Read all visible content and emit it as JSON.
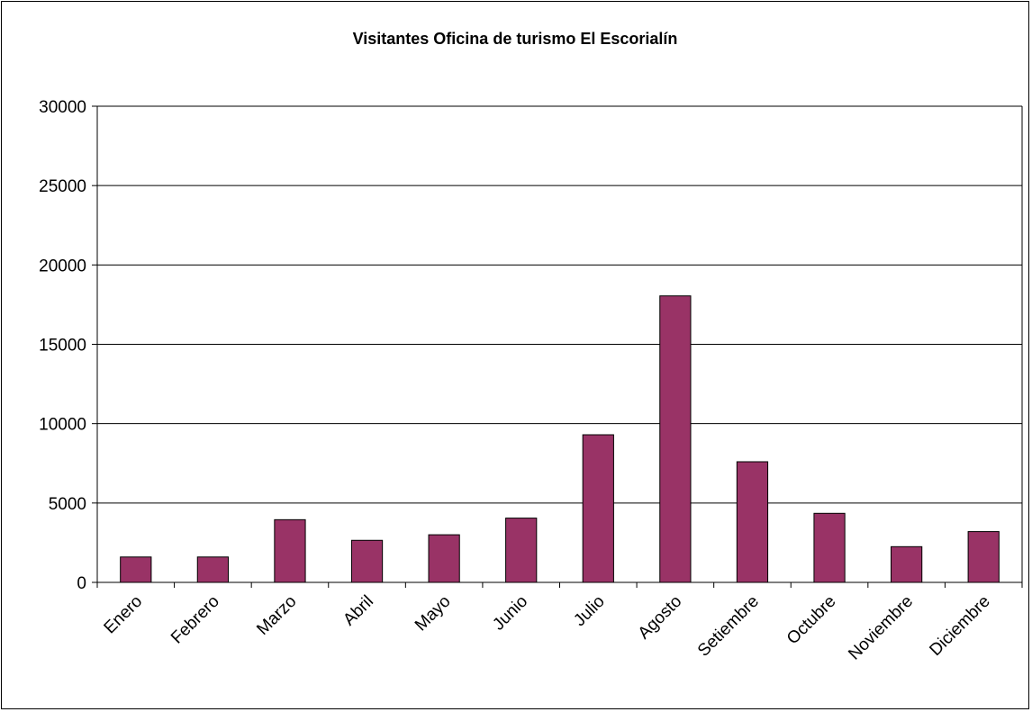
{
  "chart_data": {
    "type": "bar",
    "title": "Visitantes Oficina de turismo El Escorialín",
    "xlabel": "",
    "ylabel": "",
    "categories": [
      "Enero",
      "Febrero",
      "Marzo",
      "Abril",
      "Mayo",
      "Junio",
      "Julio",
      "Agosto",
      "Setiembre",
      "Octubre",
      "Noviembre",
      "Diciembre"
    ],
    "series": [
      {
        "values": [
          1600,
          1600,
          3950,
          2650,
          3000,
          4050,
          9300,
          18050,
          7600,
          4350,
          2250,
          3200
        ]
      }
    ],
    "ylim": [
      0,
      30000
    ],
    "yticks": [
      0,
      5000,
      10000,
      15000,
      20000,
      25000,
      30000
    ],
    "grid": true,
    "legend": "none",
    "colors": {
      "bar_fill": "#993366",
      "bar_stroke": "#000000",
      "gridline": "#000000",
      "background": "#ffffff"
    }
  }
}
